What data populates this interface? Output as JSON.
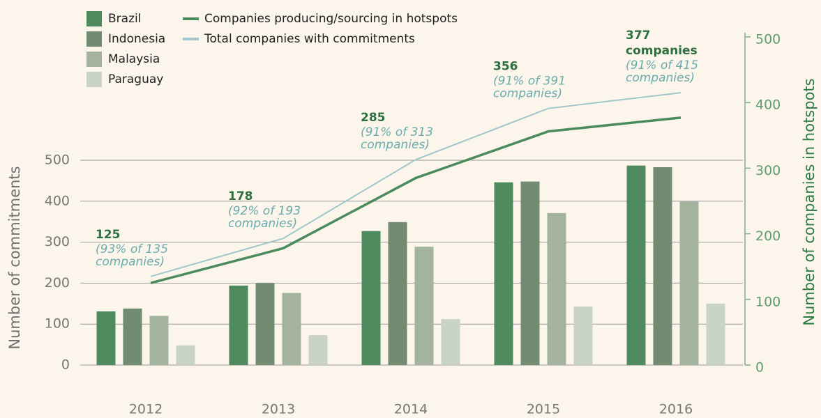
{
  "chart_data": {
    "type": "bar",
    "ylabel": "Number of commitments",
    "y2label": "Number of companies in hotspots",
    "categories": [
      "2012",
      "2013",
      "2014",
      "2015",
      "2016"
    ],
    "series": [
      {
        "name": "Brazil",
        "color": "#4f8a5f",
        "values": [
          131,
          194,
          327,
          446,
          487
        ]
      },
      {
        "name": "Indonesia",
        "color": "#718c70",
        "values": [
          138,
          200,
          349,
          448,
          483
        ]
      },
      {
        "name": "Malaysia",
        "color": "#a3b39d",
        "values": [
          120,
          176,
          289,
          371,
          399
        ]
      },
      {
        "name": "Paraguay",
        "color": "#c9d4c4",
        "values": [
          48,
          73,
          112,
          143,
          150
        ]
      },
      {
        "name": "Companies producing/sourcing in hotspots",
        "type": "line",
        "axis": "y2",
        "color": "#4b8a5b",
        "values": [
          125,
          178,
          285,
          356,
          377
        ]
      },
      {
        "name": "Total companies with commitments",
        "type": "line",
        "axis": "y2",
        "color": "#a0c6c9",
        "values": [
          135,
          193,
          313,
          391,
          415
        ]
      }
    ],
    "annotations": [
      {
        "lines": [
          "(93% of 135",
          "companies)"
        ]
      },
      {
        "lines": [
          "(92% of 193",
          "companies)"
        ]
      },
      {
        "lines": [
          "(91% of 313",
          "companies)"
        ]
      },
      {
        "lines": [
          "(91% of 391",
          "companies)"
        ]
      },
      {
        "bold": "companies",
        "lines": [
          "(91% of 415",
          "companies)"
        ]
      }
    ],
    "ylim": [
      0,
      500
    ],
    "yticks": [
      0,
      100,
      200,
      300,
      400,
      500
    ],
    "y2lim": [
      0,
      500
    ],
    "y2ticks": [
      0,
      100,
      200,
      300,
      400,
      500
    ],
    "grid": true
  }
}
